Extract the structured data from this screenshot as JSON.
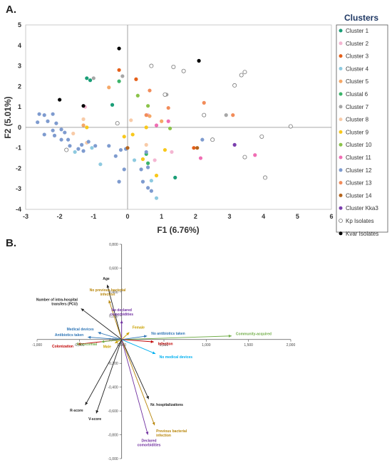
{
  "panels": {
    "a_label": "A.",
    "b_label": "B."
  },
  "chart_data": [
    {
      "type": "scatter",
      "xlabel": "F1 (6.76%)",
      "ylabel": "F2 (5.01%)",
      "xlim": [
        -3,
        6
      ],
      "ylim": [
        -4,
        5
      ],
      "xticks": [
        "-3",
        "-2",
        "-1",
        "0",
        "1",
        "2",
        "3",
        "4",
        "5",
        "6"
      ],
      "yticks": [
        "5",
        "4",
        "3",
        "2",
        "1",
        "0",
        "-1",
        "-2",
        "-3",
        "-4"
      ],
      "grid": false,
      "legend_title": "Clusters",
      "legend_position": "right",
      "series": [
        {
          "name": "Cluster 1",
          "color": "#1a9e77",
          "hollow": false,
          "points": [
            [
              -1.2,
              2.4
            ],
            [
              -1.1,
              2.3
            ],
            [
              -0.45,
              1.1
            ],
            [
              1.4,
              -2.45
            ]
          ]
        },
        {
          "name": "Cluster 2",
          "color": "#f4b6d2",
          "hollow": false,
          "points": [
            [
              -1.25,
              1.0
            ],
            [
              0.6,
              0.6
            ],
            [
              0.8,
              -1.6
            ],
            [
              1.3,
              -1.2
            ]
          ]
        },
        {
          "name": "Cluster 3",
          "color": "#e5601a",
          "hollow": false,
          "points": [
            [
              -0.25,
              2.8
            ],
            [
              0.25,
              2.35
            ],
            [
              1.95,
              -1.0
            ]
          ]
        },
        {
          "name": "Cluster 4",
          "color": "#8ecae0",
          "hollow": false,
          "points": [
            [
              -1.55,
              -1.2
            ],
            [
              -0.8,
              -1.8
            ],
            [
              0.2,
              -1.6
            ],
            [
              0.85,
              -3.45
            ],
            [
              -1.05,
              -1.0
            ],
            [
              0.7,
              -2.6
            ]
          ]
        },
        {
          "name": "Cluster 5",
          "color": "#f5a868",
          "hollow": false,
          "points": [
            [
              -1.3,
              0.1
            ],
            [
              -0.55,
              1.95
            ],
            [
              0.65,
              0.55
            ],
            [
              1.0,
              0.3
            ]
          ]
        },
        {
          "name": "Clustal 6",
          "color": "#3cb46a",
          "hollow": false,
          "points": [
            [
              -0.25,
              2.25
            ],
            [
              0.55,
              -1.3
            ],
            [
              0.6,
              -1.75
            ]
          ]
        },
        {
          "name": "Cluster 7",
          "color": "#a6a6a6",
          "hollow": false,
          "points": [
            [
              -1.0,
              2.4
            ],
            [
              -0.15,
              2.5
            ],
            [
              1.15,
              1.6
            ],
            [
              2.9,
              0.6
            ]
          ]
        },
        {
          "name": "Cluster 8",
          "color": "#f8cba8",
          "hollow": false,
          "points": [
            [
              -1.6,
              -0.3
            ],
            [
              -1.3,
              0.4
            ],
            [
              -1.2,
              -0.75
            ],
            [
              0.1,
              0.35
            ],
            [
              0.55,
              -0.85
            ]
          ]
        },
        {
          "name": "Cluster 9",
          "color": "#f8c81c",
          "hollow": false,
          "points": [
            [
              -1.2,
              0.0
            ],
            [
              -0.1,
              -0.45
            ],
            [
              0.15,
              -0.35
            ],
            [
              0.45,
              -1.55
            ],
            [
              0.85,
              -2.35
            ],
            [
              1.1,
              -1.1
            ],
            [
              0.55,
              0.0
            ]
          ]
        },
        {
          "name": "Cluster 10",
          "color": "#8bc34a",
          "hollow": false,
          "points": [
            [
              0.3,
              1.55
            ],
            [
              0.6,
              1.05
            ],
            [
              1.25,
              -0.05
            ]
          ]
        },
        {
          "name": "Cluster 11",
          "color": "#f06eb4",
          "hollow": false,
          "points": [
            [
              0.85,
              0.1
            ],
            [
              1.2,
              0.3
            ],
            [
              2.15,
              -1.5
            ],
            [
              3.75,
              -1.35
            ]
          ]
        },
        {
          "name": "Cluster 12",
          "color": "#7e9bcf",
          "hollow": false,
          "points": [
            [
              -2.6,
              0.65
            ],
            [
              -2.45,
              0.6
            ],
            [
              -2.2,
              0.65
            ],
            [
              -2.35,
              0.3
            ],
            [
              -2.1,
              0.2
            ],
            [
              -1.95,
              -0.1
            ],
            [
              -2.2,
              -0.15
            ],
            [
              -2.45,
              -0.35
            ],
            [
              -2.15,
              -0.4
            ],
            [
              -1.85,
              -0.25
            ],
            [
              -1.75,
              -0.6
            ],
            [
              -1.95,
              -0.6
            ],
            [
              -1.7,
              -0.9
            ],
            [
              -1.45,
              -1.05
            ],
            [
              -1.3,
              -1.15
            ],
            [
              -1.35,
              -0.85
            ],
            [
              -1.15,
              -0.7
            ],
            [
              -0.95,
              -0.9
            ],
            [
              -0.55,
              -0.9
            ],
            [
              -0.35,
              -1.4
            ],
            [
              -0.2,
              -1.1
            ],
            [
              -0.1,
              -2.05
            ],
            [
              -0.25,
              -2.65
            ],
            [
              -0.05,
              -1.05
            ],
            [
              0.45,
              -2.65
            ],
            [
              0.6,
              -2.95
            ],
            [
              0.7,
              -3.1
            ],
            [
              0.55,
              -1.2
            ],
            [
              0.6,
              -1.95
            ],
            [
              2.2,
              -0.6
            ],
            [
              0.4,
              -2.05
            ],
            [
              -2.65,
              0.25
            ]
          ]
        },
        {
          "name": "Cluster 13",
          "color": "#f28c5a",
          "hollow": false,
          "points": [
            [
              0.65,
              1.8
            ],
            [
              1.2,
              0.95
            ],
            [
              2.25,
              1.2
            ],
            [
              3.1,
              0.6
            ],
            [
              0.55,
              0.6
            ]
          ]
        },
        {
          "name": "Cluster 14",
          "color": "#b5651d",
          "hollow": false,
          "points": [
            [
              0.0,
              -1.0
            ],
            [
              2.05,
              -1.0
            ]
          ]
        },
        {
          "name": "Cluster Kka3",
          "color": "#7b3fae",
          "hollow": false,
          "points": [
            [
              3.15,
              -0.85
            ]
          ]
        },
        {
          "name": "Kp Isolates",
          "color": "#777777",
          "hollow": true,
          "points": [
            [
              0.7,
              3.0
            ],
            [
              1.35,
              2.95
            ],
            [
              1.65,
              2.75
            ],
            [
              1.1,
              1.6
            ],
            [
              2.25,
              0.6
            ],
            [
              2.5,
              -0.6
            ],
            [
              3.15,
              2.05
            ],
            [
              3.35,
              2.55
            ],
            [
              3.45,
              2.7
            ],
            [
              3.45,
              -1.45
            ],
            [
              3.95,
              -0.45
            ],
            [
              4.05,
              -2.45
            ],
            [
              4.8,
              0.05
            ],
            [
              -0.3,
              0.2
            ],
            [
              -1.8,
              -1.1
            ]
          ]
        },
        {
          "name": "Kvar Isolates",
          "color": "#000000",
          "hollow": false,
          "points": [
            [
              -0.25,
              3.85
            ],
            [
              2.1,
              3.25
            ],
            [
              -2.0,
              1.35
            ],
            [
              -1.3,
              1.05
            ]
          ]
        }
      ]
    },
    {
      "type": "vector",
      "xticks": [
        "-1,000",
        "-0,500",
        "0,000",
        "0,500",
        "1,000",
        "1,500",
        "2,000"
      ],
      "yticks": [
        "0,800",
        "0,600",
        "0,400",
        "0,200",
        "0,000",
        "-0,200",
        "-0,400",
        "-0,600",
        "-0,800",
        "-1,000"
      ],
      "xlim": [
        -1.0,
        2.0
      ],
      "ylim": [
        -1.0,
        0.8
      ],
      "vectors": [
        {
          "label": "Age",
          "x": -0.17,
          "y": 0.46,
          "color": "#222222"
        },
        {
          "label": "No previous bacterial\ninfection",
          "x": -0.15,
          "y": 0.33,
          "color": "#b8860b"
        },
        {
          "label": "Number of intra-hospital\ntransfers (PCU)",
          "x": -0.48,
          "y": 0.26,
          "color": "#222222"
        },
        {
          "label": "No declared\ncomorbidities",
          "x": 0.0,
          "y": 0.16,
          "color": "#7030a0"
        },
        {
          "label": "Community-acquired",
          "x": 1.3,
          "y": 0.03,
          "color": "#70ad47"
        },
        {
          "label": "Medical devices",
          "x": -0.28,
          "y": 0.06,
          "color": "#2e75b6"
        },
        {
          "label": "Antibiotics taken",
          "x": -0.4,
          "y": 0.02,
          "color": "#2e75b6"
        },
        {
          "label": "Female",
          "x": 0.09,
          "y": 0.06,
          "color": "#c9a100"
        },
        {
          "label": "No antibiotics taken",
          "x": 0.3,
          "y": 0.03,
          "color": "#2e75b6"
        },
        {
          "label": "Infection",
          "x": 0.38,
          "y": -0.02,
          "color": "#c00000"
        },
        {
          "label": "Colonization",
          "x": -0.52,
          "y": -0.04,
          "color": "#c00000"
        },
        {
          "label": "Nosocomial",
          "x": -0.24,
          "y": -0.02,
          "color": "#70ad47"
        },
        {
          "label": "Male",
          "x": -0.08,
          "y": -0.03,
          "color": "#c9a100"
        },
        {
          "label": "No medical devices",
          "x": 0.4,
          "y": -0.12,
          "color": "#00b0f0"
        },
        {
          "label": "Nr. hospitalizations",
          "x": 0.32,
          "y": -0.5,
          "color": "#222222"
        },
        {
          "label": "Previous bacterial\ninfection",
          "x": 0.39,
          "y": -0.72,
          "color": "#b8860b"
        },
        {
          "label": "Declared\ncomorbidities",
          "x": 0.31,
          "y": -0.8,
          "color": "#7030a0"
        },
        {
          "label": "R-score",
          "x": -0.43,
          "y": -0.55,
          "color": "#222222"
        },
        {
          "label": "V-score",
          "x": -0.3,
          "y": -0.62,
          "color": "#222222"
        }
      ]
    }
  ]
}
